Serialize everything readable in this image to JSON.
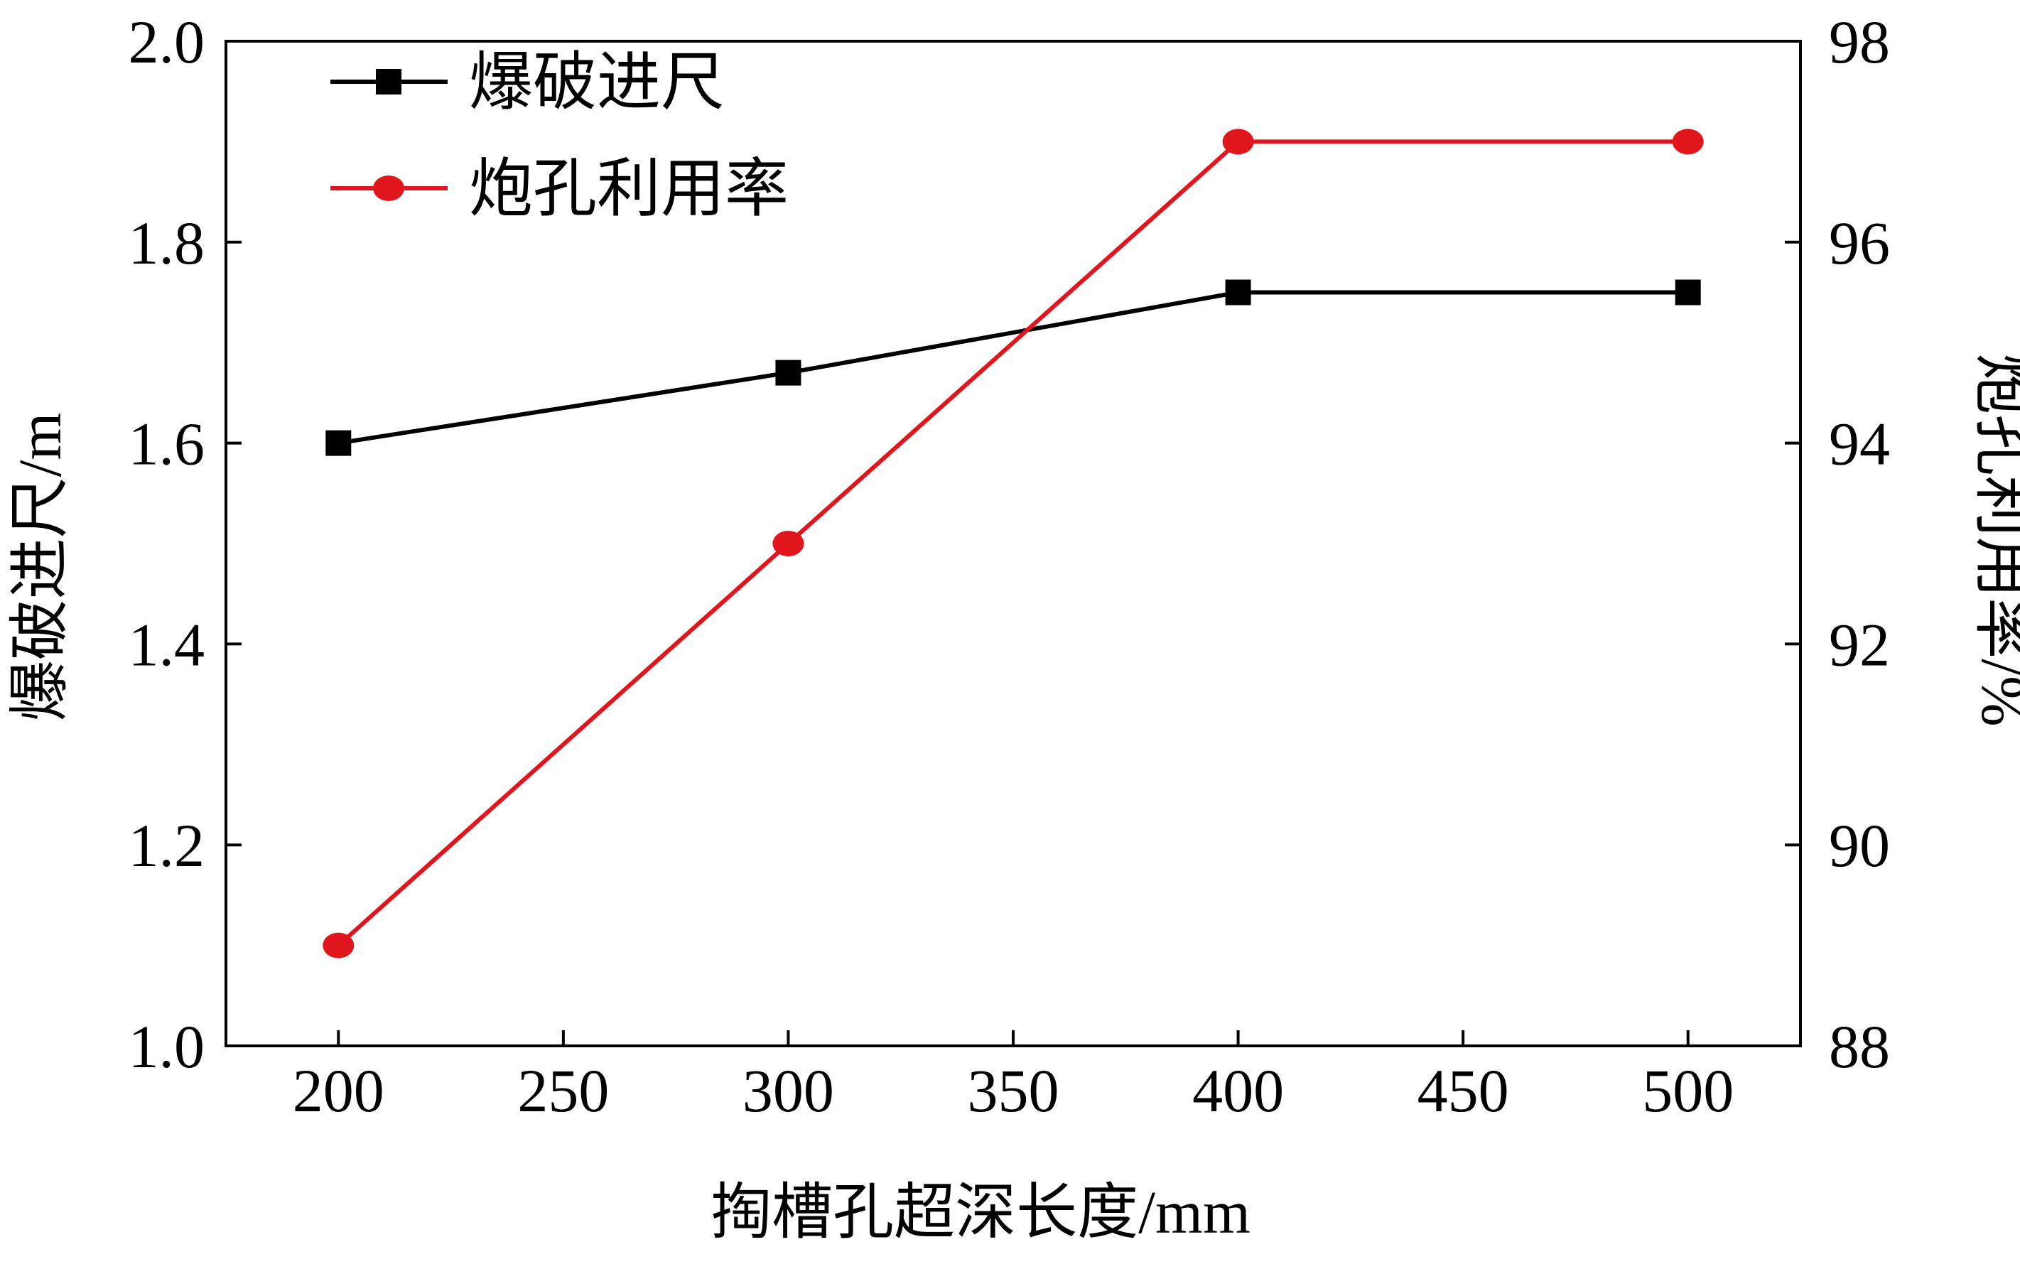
{
  "chart_data": {
    "type": "line",
    "x": [
      200,
      300,
      400,
      500
    ],
    "x_ticks": [
      "200",
      "250",
      "300",
      "350",
      "400",
      "450",
      "500"
    ],
    "xlabel": "掏槽孔超深长度/mm",
    "xlim": [
      175,
      525
    ],
    "ylabel_left": "爆破进尺/m",
    "ylim_left": [
      1.0,
      2.0
    ],
    "y_ticks_left": [
      "1.0",
      "1.2",
      "1.4",
      "1.6",
      "1.8",
      "2.0"
    ],
    "ylabel_right": "炮孔利用率/%",
    "ylim_right": [
      88,
      98
    ],
    "y_ticks_right": [
      "88",
      "90",
      "92",
      "94",
      "96",
      "98"
    ],
    "grid": false,
    "legend_position": "top-left",
    "series": [
      {
        "name": "爆破进尺",
        "axis": "left",
        "marker": "square",
        "color": "#000000",
        "values": [
          1.6,
          1.67,
          1.75,
          1.75
        ]
      },
      {
        "name": "炮孔利用率",
        "axis": "right",
        "marker": "circle",
        "color": "#e0161c",
        "values": [
          89,
          93,
          97,
          97
        ]
      }
    ]
  }
}
